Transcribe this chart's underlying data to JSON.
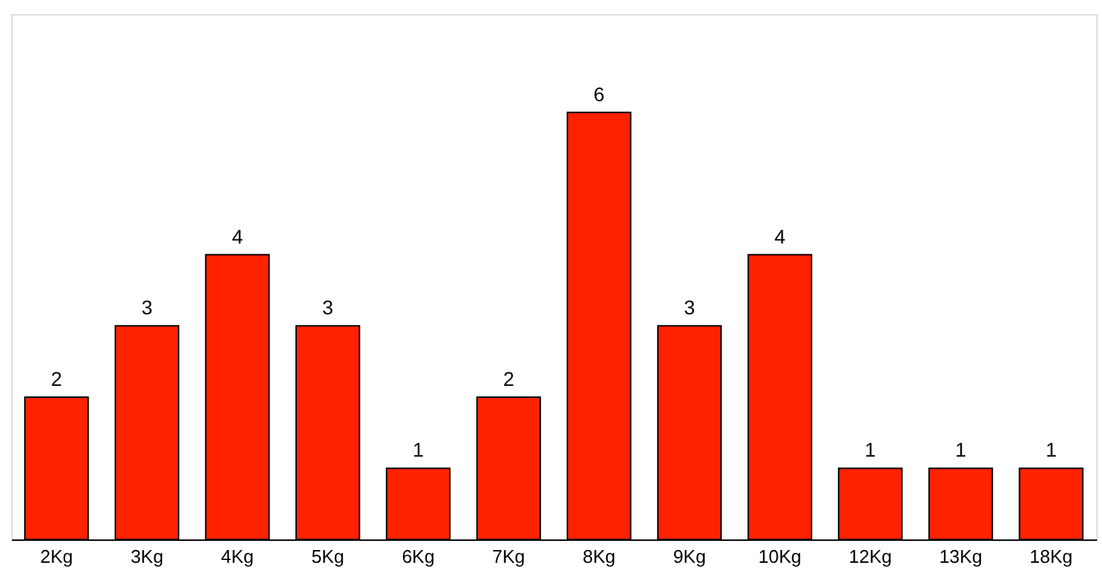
{
  "chart_data": {
    "type": "bar",
    "categories": [
      "2Kg",
      "3Kg",
      "4Kg",
      "5Kg",
      "6Kg",
      "7Kg",
      "8Kg",
      "9Kg",
      "10Kg",
      "12Kg",
      "13Kg",
      "18Kg"
    ],
    "values": [
      2,
      3,
      4,
      3,
      1,
      2,
      6,
      3,
      4,
      1,
      1,
      1
    ],
    "color": "#ff2200",
    "data_labels": true
  }
}
